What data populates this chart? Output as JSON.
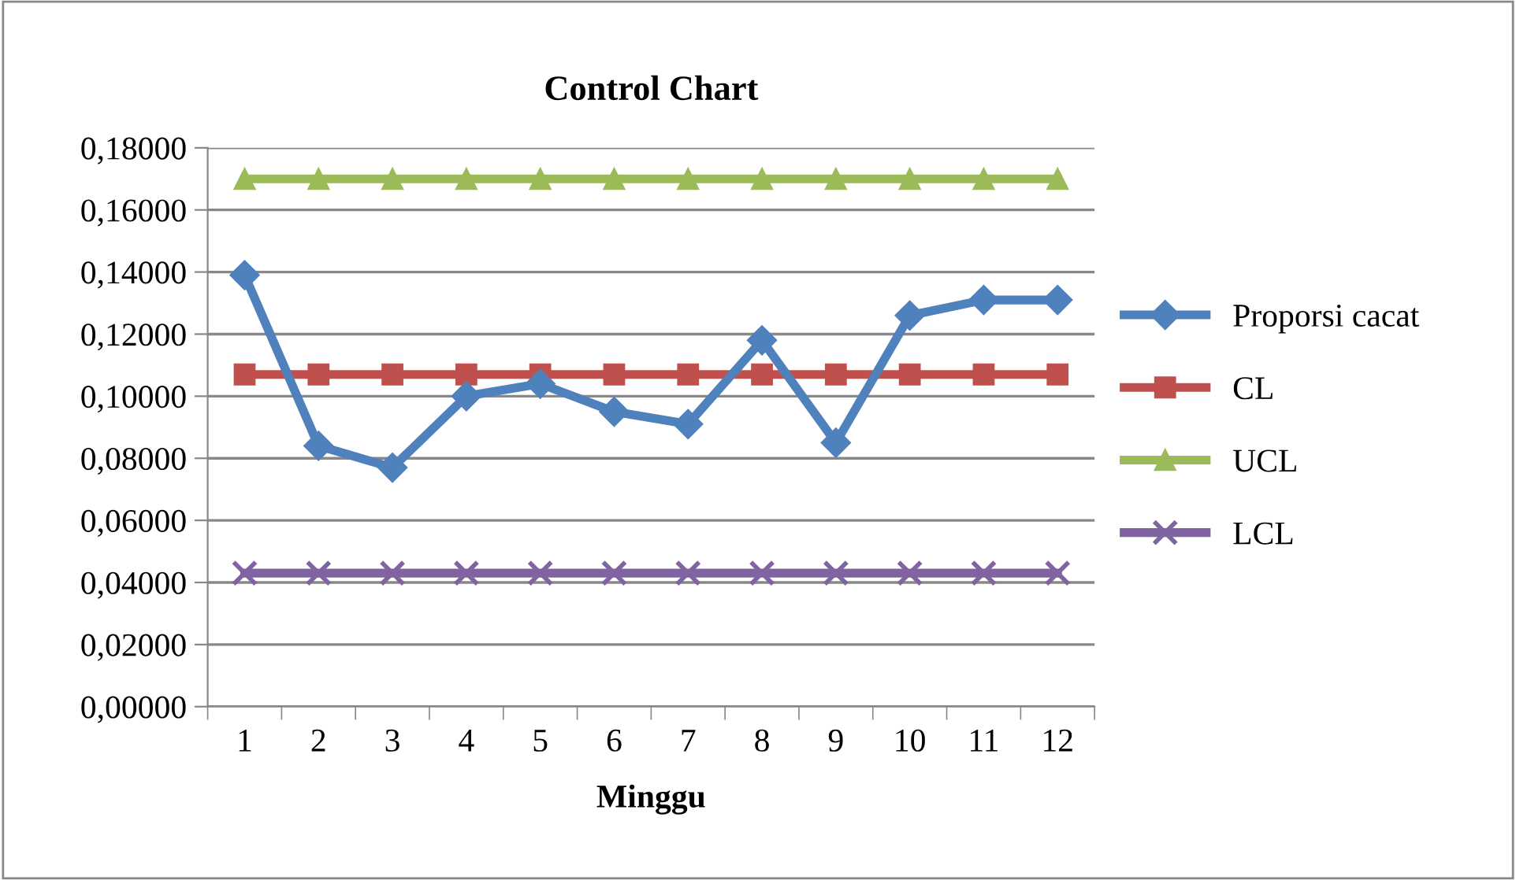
{
  "chart_data": {
    "type": "line",
    "title": "Control Chart",
    "xlabel": "Minggu",
    "categories": [
      "1",
      "2",
      "3",
      "4",
      "5",
      "6",
      "7",
      "8",
      "9",
      "10",
      "11",
      "12"
    ],
    "series": [
      {
        "name": "Proporsi cacat",
        "color": "#4f81bd",
        "marker": "diamond",
        "values": [
          0.139,
          0.084,
          0.077,
          0.1,
          0.104,
          0.095,
          0.091,
          0.118,
          0.085,
          0.126,
          0.131,
          0.131
        ]
      },
      {
        "name": "CL",
        "color": "#c0504d",
        "marker": "square",
        "values": [
          0.107,
          0.107,
          0.107,
          0.107,
          0.107,
          0.107,
          0.107,
          0.107,
          0.107,
          0.107,
          0.107,
          0.107
        ]
      },
      {
        "name": "UCL",
        "color": "#9bbb59",
        "marker": "triangle",
        "values": [
          0.17,
          0.17,
          0.17,
          0.17,
          0.17,
          0.17,
          0.17,
          0.17,
          0.17,
          0.17,
          0.17,
          0.17
        ]
      },
      {
        "name": "LCL",
        "color": "#8064a2",
        "marker": "cross",
        "values": [
          0.043,
          0.043,
          0.043,
          0.043,
          0.043,
          0.043,
          0.043,
          0.043,
          0.043,
          0.043,
          0.043,
          0.043
        ]
      }
    ],
    "ylim": [
      0,
      0.18
    ],
    "yticks": [
      {
        "value": 0,
        "label": "0,00000"
      },
      {
        "value": 0.02,
        "label": "0,02000"
      },
      {
        "value": 0.04,
        "label": "0,04000"
      },
      {
        "value": 0.06,
        "label": "0,06000"
      },
      {
        "value": 0.08,
        "label": "0,08000"
      },
      {
        "value": 0.1,
        "label": "0,10000"
      },
      {
        "value": 0.12,
        "label": "0,12000"
      },
      {
        "value": 0.14,
        "label": "0,14000"
      },
      {
        "value": 0.16,
        "label": "0,16000"
      },
      {
        "value": 0.18,
        "label": "0,18000"
      }
    ],
    "grid": "y",
    "legend": "right",
    "line_style": "solid"
  }
}
